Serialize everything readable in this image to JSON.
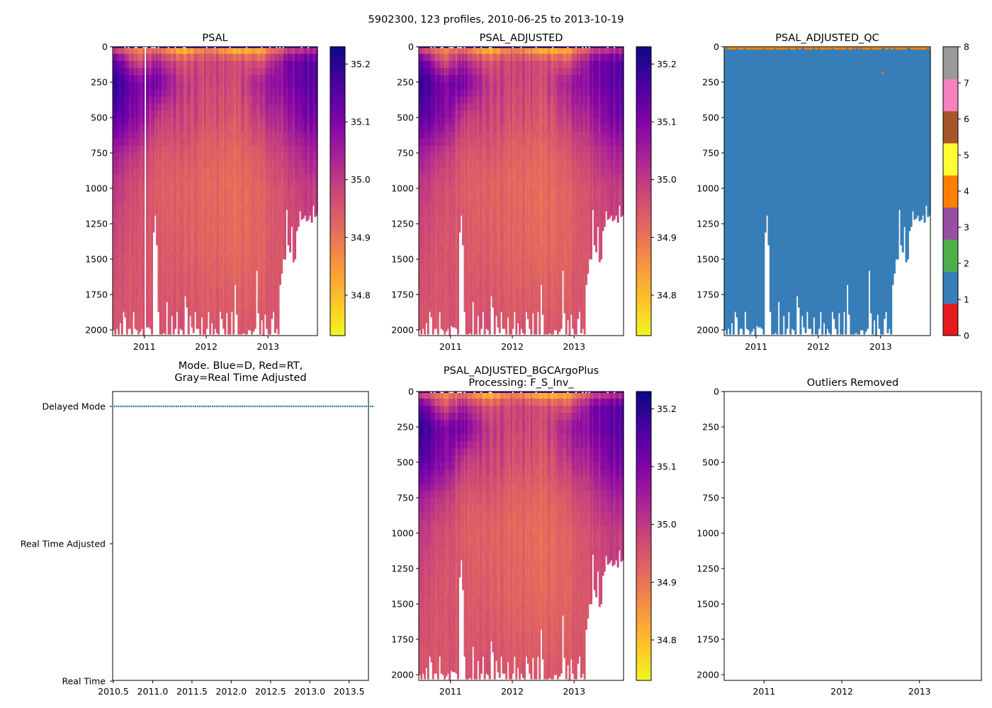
{
  "suptitle": "5902300, 123 profiles, 2010-06-25 to 2013-10-19",
  "chart_data": [
    {
      "type": "heatmap",
      "title": "PSAL",
      "cmap": "plasma_r",
      "clim": [
        34.73,
        35.23
      ],
      "cbar_ticks": [
        "35.2",
        "35.1",
        "35.0",
        "34.9",
        "34.8"
      ],
      "xticks": [
        "2011",
        "2012",
        "2013"
      ],
      "yticks": [
        "0",
        "250",
        "500",
        "750",
        "1000",
        "1250",
        "1500",
        "1750",
        "2000"
      ],
      "gap_year": 2011.0
    },
    {
      "type": "heatmap",
      "title": "PSAL_ADJUSTED",
      "cmap": "plasma_r",
      "clim": [
        34.73,
        35.23
      ],
      "cbar_ticks": [
        "35.2",
        "35.1",
        "35.0",
        "34.9",
        "34.8"
      ],
      "xticks": [
        "2011",
        "2012",
        "2013"
      ],
      "yticks": [
        "0",
        "250",
        "500",
        "750",
        "1000",
        "1250",
        "1500",
        "1750",
        "2000"
      ]
    },
    {
      "type": "heatmap",
      "title": "PSAL_ADJUSTED_QC",
      "cmap": "Set1",
      "clim": [
        0,
        8
      ],
      "cbar_ticks": [
        "0",
        "1",
        "2",
        "3",
        "4",
        "5",
        "6",
        "7",
        "8"
      ],
      "qc_colors": [
        "#e41a1c",
        "#377eb8",
        "#4daf4a",
        "#984ea3",
        "#ff7f00",
        "#ffff33",
        "#a65628",
        "#f781bf",
        "#999999"
      ],
      "surface_flag": 4,
      "body_flag": 1,
      "xticks": [
        "2011",
        "2012",
        "2013"
      ],
      "yticks": [
        "0",
        "250",
        "500",
        "750",
        "1000",
        "1250",
        "1500",
        "1750",
        "2000"
      ]
    },
    {
      "type": "scatter",
      "title": "Mode. Blue=D, Red=RT,",
      "title2": "Gray=Real Time Adjusted",
      "yticklabels": [
        "Delayed Mode",
        "Real Time Adjusted",
        "Real Time"
      ],
      "xticks": [
        "2010.5",
        "2011.0",
        "2011.5",
        "2012.0",
        "2012.5",
        "2013.0",
        "2013.5"
      ],
      "mode": "Delayed Mode",
      "color": "#1f77b4"
    },
    {
      "type": "heatmap",
      "title": "PSAL_ADJUSTED_BGCArgoPlus",
      "title2": "Processing: F_S_Inv_",
      "cmap": "plasma_r",
      "clim": [
        34.73,
        35.23
      ],
      "cbar_ticks": [
        "35.2",
        "35.1",
        "35.0",
        "34.9",
        "34.8"
      ],
      "xticks": [
        "2011",
        "2012",
        "2013"
      ],
      "yticks": [
        "0",
        "250",
        "500",
        "750",
        "1000",
        "1250",
        "1500",
        "1750",
        "2000"
      ]
    },
    {
      "type": "scatter",
      "title": "Outliers Removed",
      "xticks": [
        "2011",
        "2012",
        "2013"
      ],
      "yticks": [
        "0",
        "250",
        "500",
        "750",
        "1000",
        "1250",
        "1500",
        "1750",
        "2000"
      ],
      "points": []
    }
  ],
  "profiles": {
    "count": 123,
    "start_year": 2010.486,
    "end_year": 2013.8,
    "max_depth": 2040,
    "bottom_depth": [
      2000,
      2030,
      1990,
      2030,
      1950,
      2030,
      1870,
      1910,
      2030,
      1990,
      1990,
      2030,
      1870,
      1990,
      2000,
      2030,
      2010,
      1990,
      2040,
      1970,
      1980,
      1980,
      1990,
      2030,
      1310,
      1190,
      1400,
      1870,
      2030,
      2030,
      2020,
      2030,
      1800,
      2030,
      2030,
      1900,
      2030,
      1990,
      1870,
      2030,
      1990,
      2000,
      2030,
      1760,
      1840,
      2030,
      1900,
      1980,
      2020,
      1870,
      1990,
      1990,
      2030,
      1910,
      2030,
      2030,
      1990,
      1870,
      2030,
      1950,
      2030,
      1990,
      2020,
      2030,
      1870,
      1920,
      1990,
      2030,
      1880,
      2030,
      2030,
      1870,
      2030,
      1680,
      1890,
      2030,
      2030,
      2030,
      2020,
      2030,
      2030,
      2000,
      2000,
      2030,
      2010,
      1990,
      1580,
      1880,
      2030,
      1930,
      2040,
      1890,
      1990,
      2030,
      2030,
      1920,
      1870,
      2020,
      1990,
      2030,
      1680,
      1600,
      1500,
      1500,
      1150,
      1400,
      1450,
      1270,
      1520,
      1500,
      1300,
      1270,
      1160,
      1220,
      1210,
      1190,
      1230,
      1220,
      1190,
      1240,
      1120,
      1200,
      1190
    ],
    "depth_rows": [
      0,
      100,
      250,
      500,
      750,
      1000,
      1500,
      2000
    ],
    "field_years": [
      2010.5,
      2010.9,
      2011.2,
      2011.6,
      2012.0,
      2012.5,
      2012.9,
      2013.3,
      2013.8
    ],
    "salinity_field": [
      [
        34.95,
        35.15,
        35.2,
        35.15,
        35.05,
        35.0,
        34.97,
        34.95
      ],
      [
        34.85,
        34.95,
        35.1,
        35.08,
        35.0,
        34.96,
        34.95,
        34.95
      ],
      [
        34.9,
        35.05,
        35.12,
        35.0,
        34.95,
        34.94,
        34.95,
        34.96
      ],
      [
        34.76,
        34.95,
        35.0,
        34.98,
        34.95,
        34.93,
        34.94,
        34.96
      ],
      [
        34.88,
        34.98,
        34.98,
        34.96,
        34.93,
        34.92,
        34.93,
        34.95
      ],
      [
        34.78,
        34.97,
        34.97,
        34.95,
        34.92,
        34.91,
        34.92,
        34.95
      ],
      [
        34.8,
        34.95,
        35.05,
        35.0,
        34.95,
        34.93,
        34.93,
        34.95
      ],
      [
        34.95,
        35.1,
        35.1,
        35.05,
        35.0,
        34.97,
        34.96,
        34.96
      ],
      [
        35.0,
        35.15,
        35.15,
        35.12,
        35.05,
        35.0,
        34.98,
        34.97
      ]
    ]
  }
}
